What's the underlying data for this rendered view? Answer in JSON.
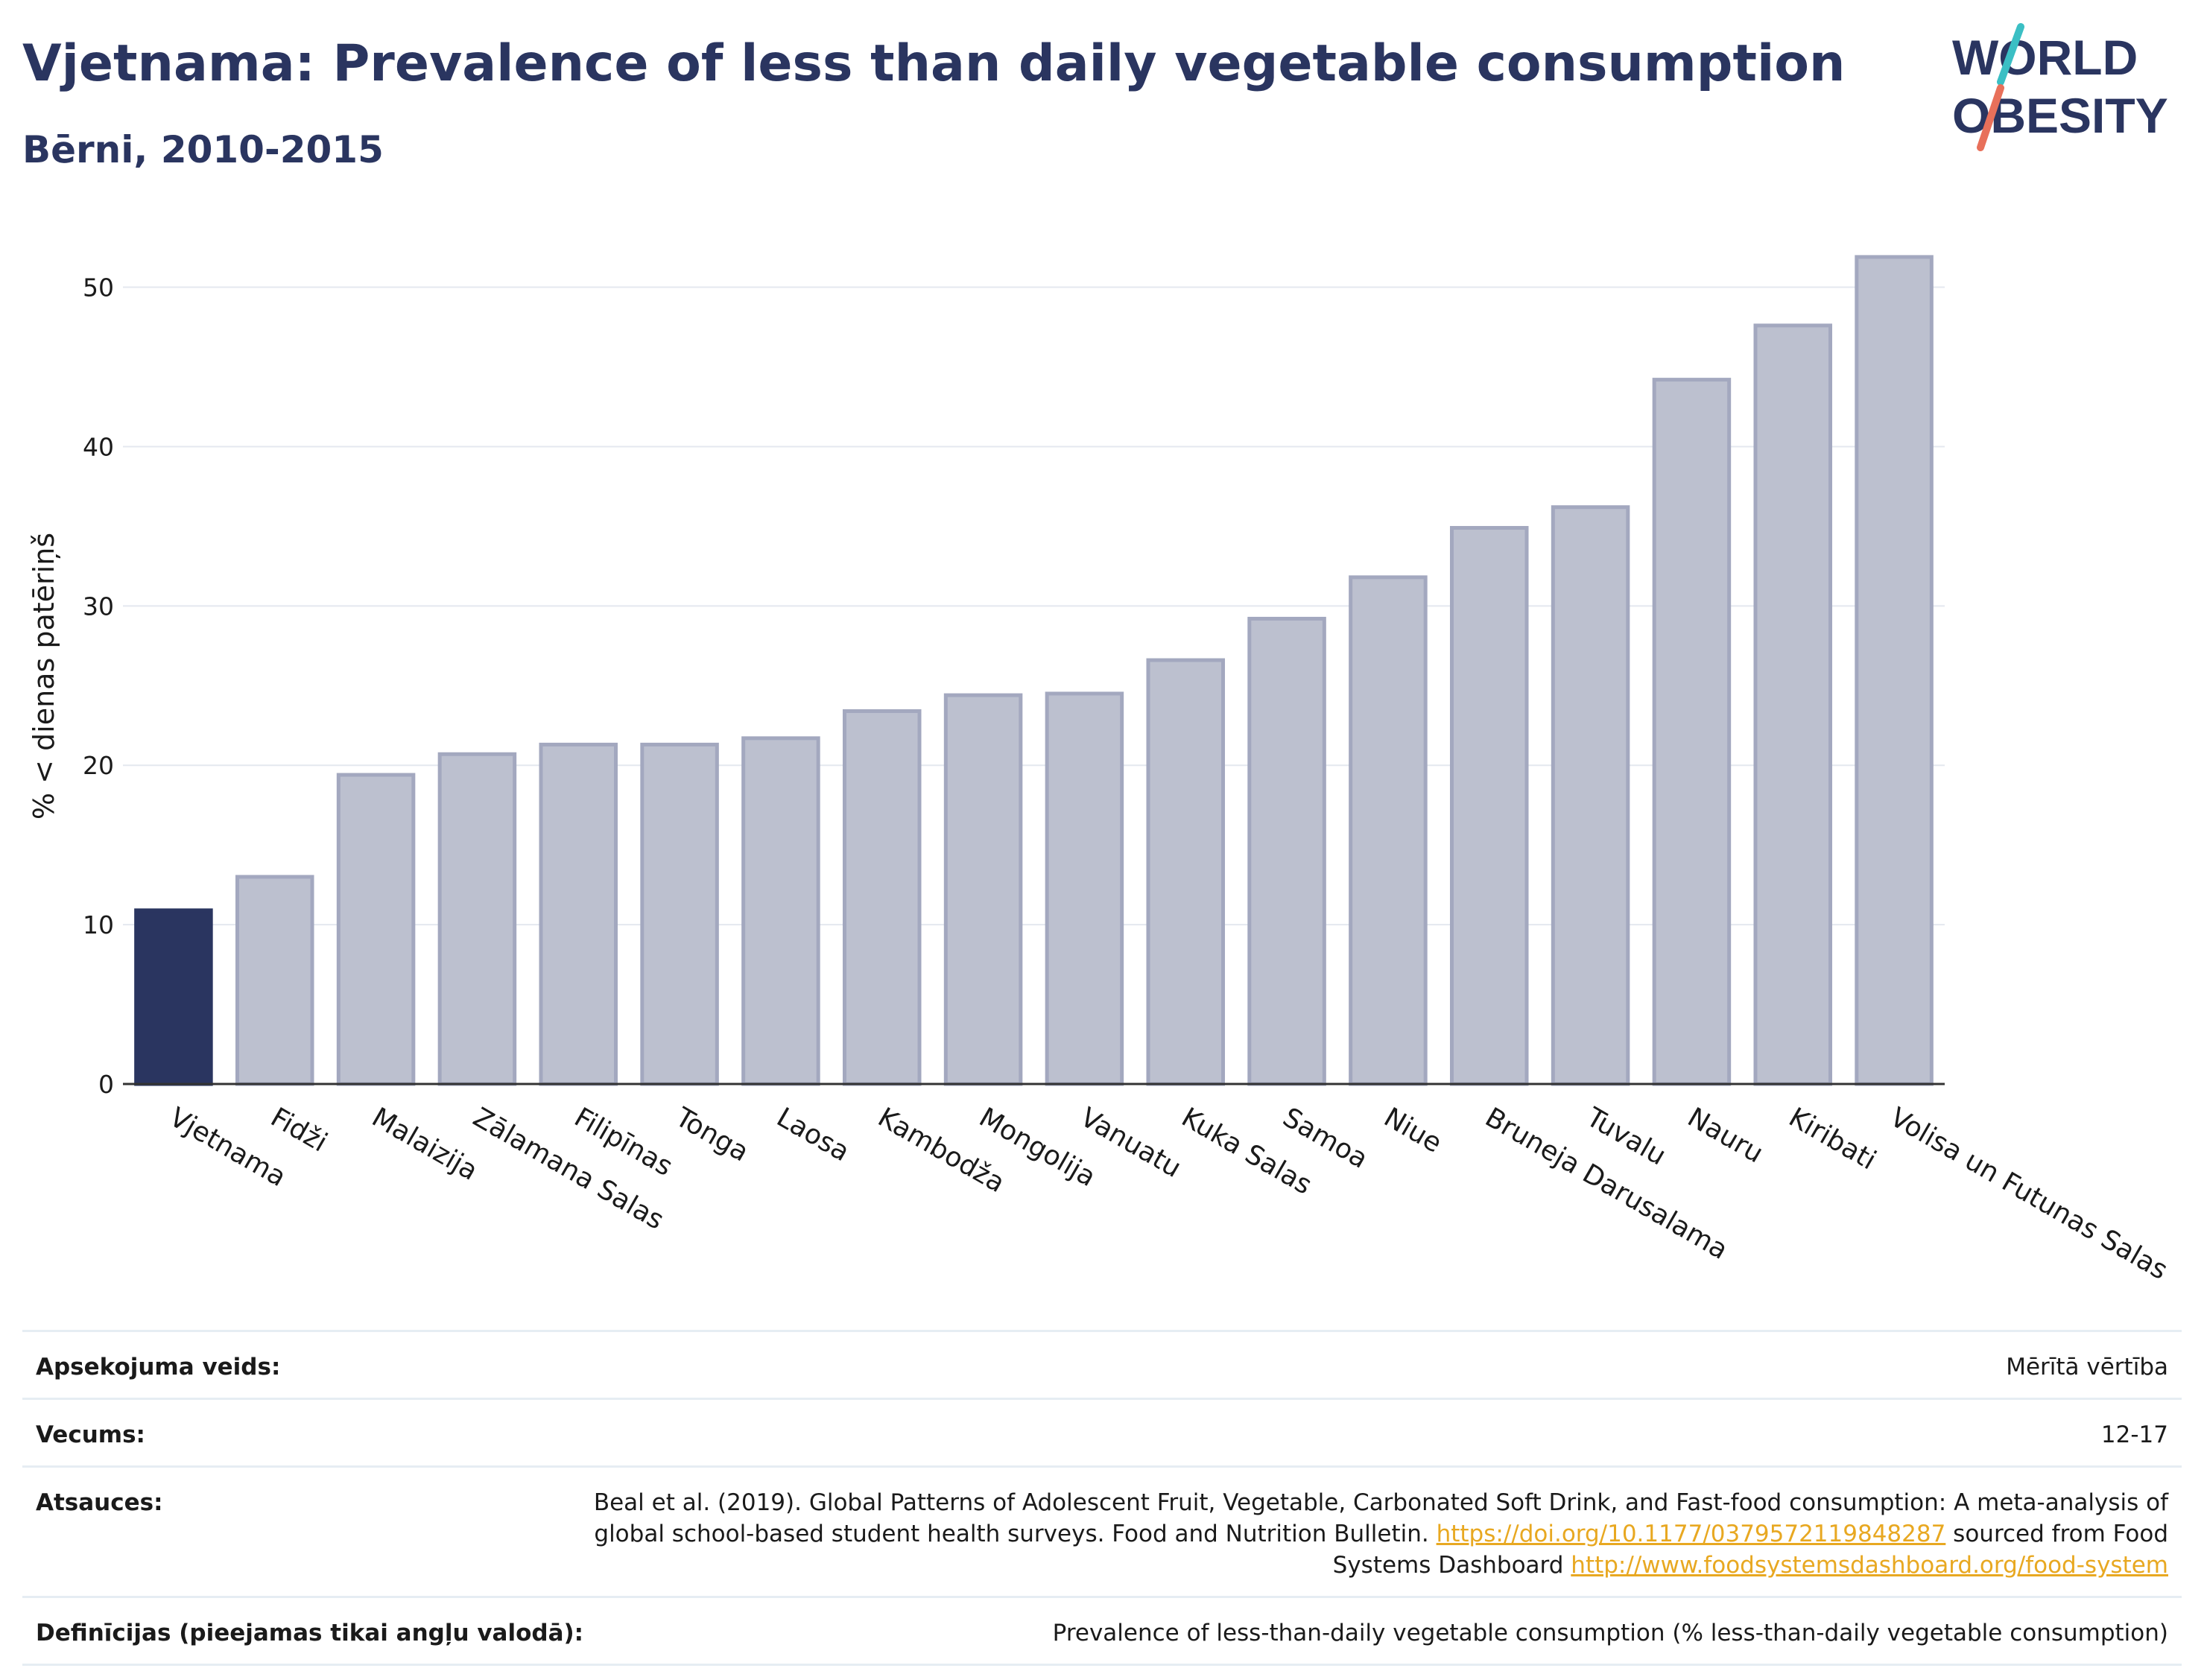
{
  "header": {
    "title": "Vjetnama: Prevalence of less than daily vegetable consumption",
    "subtitle": "Bērni, 2010-2015"
  },
  "logo": {
    "line1": "WORLD",
    "line2": "OBESITY",
    "accent_colors": [
      "#3bbfc4",
      "#e8705a"
    ]
  },
  "chart_data": {
    "type": "bar",
    "ylabel": "% < dienas patēriņš",
    "xlabel": "",
    "ylim": [
      0,
      54
    ],
    "yticks": [
      0,
      10,
      20,
      30,
      40,
      50
    ],
    "grid": true,
    "highlight_index": 0,
    "highlight_color": "#2a3560",
    "bar_color": "#bcc0cf",
    "bar_edge_color": "#a3a8bf",
    "categories": [
      "Vjetnama",
      "Fidži",
      "Malaizija",
      "Zālamana Salas",
      "Filipīnas",
      "Tonga",
      "Laosa",
      "Kambodža",
      "Mongolija",
      "Vanuatu",
      "Kuka Salas",
      "Samoa",
      "Niue",
      "Bruneja Darusalama",
      "Tuvalu",
      "Nauru",
      "Kiribati",
      "Volisa un Futunas Salas"
    ],
    "values": [
      10.9,
      13.0,
      19.4,
      20.7,
      21.3,
      21.3,
      21.7,
      23.4,
      24.4,
      24.5,
      26.6,
      29.2,
      31.8,
      34.9,
      36.2,
      44.2,
      47.6,
      51.9
    ]
  },
  "info": {
    "rows": [
      {
        "key": "Apsekojuma veids:",
        "value": "Mērītā vērtība"
      },
      {
        "key": "Vecums:",
        "value": "12-17"
      },
      {
        "key": "Atsauces:",
        "value_parts": [
          "Beal et al. (2019). Global Patterns of Adolescent Fruit, Vegetable, Carbonated Soft Drink, and Fast-food consumption: A meta-analysis of global school-based student health surveys. Food and Nutrition Bulletin. ",
          "https://doi.org/10.1177/0379572119848287",
          " sourced from Food Systems Dashboard ",
          "http://www.foodsystemsdashboard.org/food-system"
        ]
      },
      {
        "key": "Definīcijas (pieejamas tikai angļu valodā):",
        "value": "Prevalence of less-than-daily vegetable consumption (% less-than-daily vegetable consumption)"
      }
    ]
  }
}
